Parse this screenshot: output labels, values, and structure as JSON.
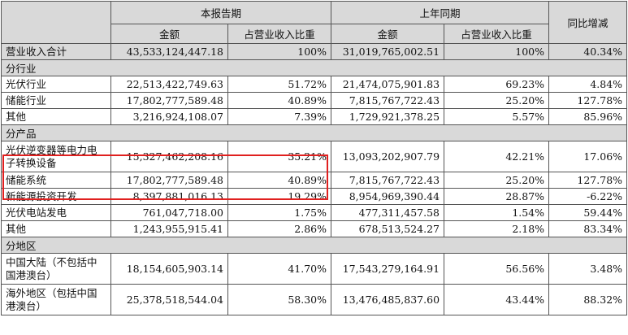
{
  "headers": {
    "current_period": "本报告期",
    "prior_period": "上年同期",
    "yoy_change": "同比增减",
    "amount": "金额",
    "share": "占营业收入比重"
  },
  "total": {
    "name": "营业收入合计",
    "cur_amount": "43,533,124,447.18",
    "cur_share": "100%",
    "prev_amount": "31,019,765,002.51",
    "prev_share": "100%",
    "yoy": "40.34%"
  },
  "sections": [
    {
      "title": "分行业",
      "rows": [
        {
          "name": "光伏行业",
          "cur_amount": "22,513,422,749.63",
          "cur_share": "51.72%",
          "prev_amount": "21,474,075,901.83",
          "prev_share": "69.23%",
          "yoy": "4.84%"
        },
        {
          "name": "储能行业",
          "cur_amount": "17,802,777,589.48",
          "cur_share": "40.89%",
          "prev_amount": "7,815,767,722.43",
          "prev_share": "25.20%",
          "yoy": "127.78%"
        },
        {
          "name": "其他",
          "cur_amount": "3,216,924,108.07",
          "cur_share": "7.39%",
          "prev_amount": "1,729,921,378.25",
          "prev_share": "5.57%",
          "yoy": "85.96%"
        }
      ]
    },
    {
      "title": "分产品",
      "rows": [
        {
          "name": "光伏逆变器等电力电子转换设备",
          "cur_amount": "15,327,462,208.16",
          "cur_share": "35.21%",
          "prev_amount": "13,093,202,907.79",
          "prev_share": "42.21%",
          "yoy": "17.06%"
        },
        {
          "name": "储能系统",
          "cur_amount": "17,802,777,589.48",
          "cur_share": "40.89%",
          "prev_amount": "7,815,767,722.43",
          "prev_share": "25.20%",
          "yoy": "127.78%"
        },
        {
          "name": "新能源投资开发",
          "cur_amount": "8,397,881,016.13",
          "cur_share": "19.29%",
          "prev_amount": "8,954,969,390.44",
          "prev_share": "28.87%",
          "yoy": "-6.22%"
        },
        {
          "name": "光伏电站发电",
          "cur_amount": "761,047,718.00",
          "cur_share": "1.75%",
          "prev_amount": "477,311,457.58",
          "prev_share": "1.54%",
          "yoy": "59.44%"
        },
        {
          "name": "其他",
          "cur_amount": "1,243,955,915.41",
          "cur_share": "2.86%",
          "prev_amount": "678,513,524.27",
          "prev_share": "2.18%",
          "yoy": "83.34%"
        }
      ]
    },
    {
      "title": "分地区",
      "rows": [
        {
          "name": "中国大陆（不包括中国港澳台）",
          "cur_amount": "18,154,605,903.14",
          "cur_share": "41.70%",
          "prev_amount": "17,543,279,164.91",
          "prev_share": "56.56%",
          "yoy": "3.48%"
        },
        {
          "name": "海外地区（包括中国港澳台）",
          "cur_amount": "25,378,518,544.04",
          "cur_share": "58.30%",
          "prev_amount": "13,476,485,837.60",
          "prev_share": "43.44%",
          "yoy": "88.32%"
        }
      ]
    }
  ]
}
